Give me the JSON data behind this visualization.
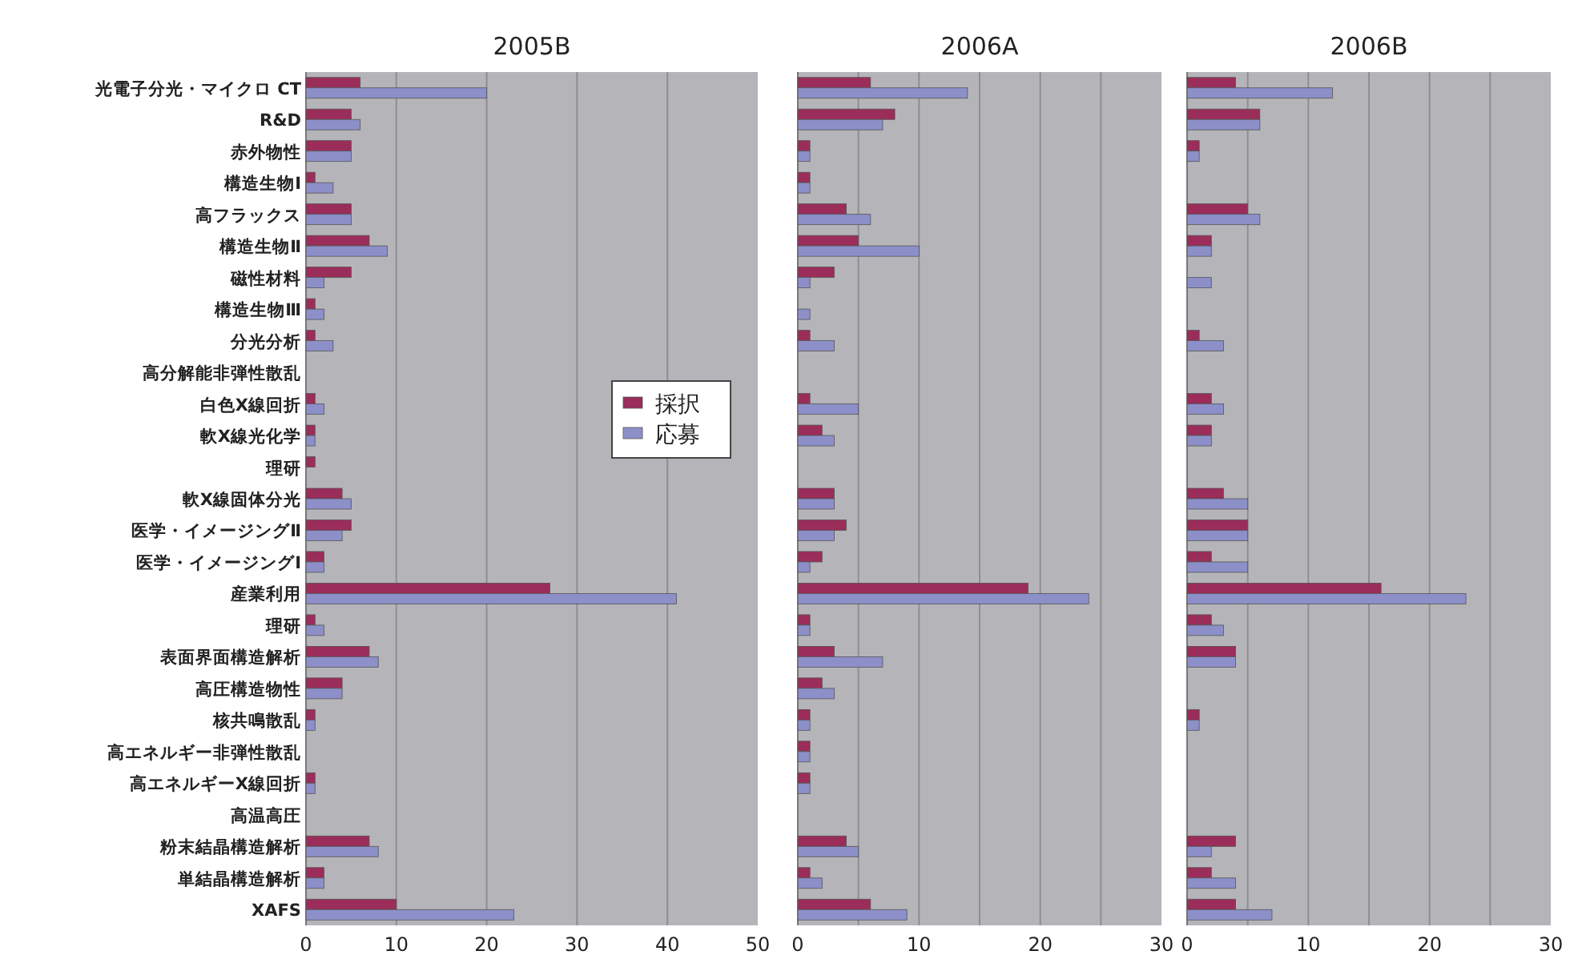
{
  "chart_data": [
    {
      "type": "bar",
      "orientation": "horizontal",
      "title": "2005B",
      "categories": [
        "光電子分光・マイクロ CT",
        "R&D",
        "赤外物性",
        "構造生物Ⅰ",
        "高フラックス",
        "構造生物Ⅱ",
        "磁性材料",
        "構造生物Ⅲ",
        "分光分析",
        "高分解能非弾性散乱",
        "白色X線回折",
        "軟X線光化学",
        "理研",
        "軟X線固体分光",
        "医学・イメージングⅡ",
        "医学・イメージングⅠ",
        "産業利用",
        "理研",
        "表面界面構造解析",
        "高圧構造物性",
        "核共鳴散乱",
        "高エネルギー非弾性散乱",
        "高エネルギーX線回折",
        "高温高圧",
        "粉末結晶構造解析",
        "単結晶構造解析",
        "XAFS"
      ],
      "series": [
        {
          "name": "採択",
          "color": "#9b2d5a",
          "values": [
            6,
            5,
            5,
            1,
            5,
            7,
            5,
            1,
            1,
            0,
            1,
            1,
            1,
            4,
            5,
            2,
            27,
            1,
            7,
            4,
            1,
            0,
            1,
            0,
            7,
            2,
            10
          ]
        },
        {
          "name": "応募",
          "color": "#8c8fc8",
          "values": [
            20,
            6,
            5,
            3,
            5,
            9,
            2,
            2,
            3,
            0,
            2,
            1,
            0,
            5,
            4,
            2,
            41,
            2,
            8,
            4,
            1,
            0,
            1,
            0,
            8,
            2,
            23
          ]
        }
      ],
      "xlim": [
        0,
        50
      ],
      "xticks": [
        0,
        10,
        20,
        30,
        40,
        50
      ],
      "grid": "x",
      "legend": "right"
    },
    {
      "type": "bar",
      "orientation": "horizontal",
      "title": "2006A",
      "tick_labels": "x",
      "categories": [
        null,
        null,
        null,
        null,
        null,
        null,
        null,
        null,
        null,
        null,
        null,
        null,
        null,
        null,
        null,
        null,
        null,
        null,
        null,
        null,
        null,
        null,
        null,
        null,
        null,
        null,
        null
      ],
      "series": [
        {
          "color": "#9b2d5a",
          "values": [
            6,
            8,
            1,
            1,
            4,
            5,
            3,
            0,
            1,
            0,
            1,
            2,
            0,
            3,
            4,
            2,
            19,
            1,
            3,
            2,
            1,
            1,
            1,
            0,
            4,
            1,
            6
          ]
        },
        {
          "color": "#8c8fc8",
          "values": [
            14,
            7,
            1,
            1,
            6,
            10,
            1,
            1,
            3,
            0,
            5,
            3,
            0,
            3,
            3,
            1,
            24,
            1,
            7,
            3,
            1,
            1,
            1,
            0,
            5,
            2,
            9
          ]
        }
      ],
      "xlim": [
        0,
        30
      ],
      "xticks": [
        0,
        {
          "value": 5,
          "label": null
        },
        10,
        {
          "value": 15,
          "label": null
        },
        20,
        {
          "value": 25,
          "label": null
        },
        30
      ],
      "grid": "x"
    },
    {
      "type": "bar",
      "orientation": "horizontal",
      "title": "2006B",
      "tick_labels": "x",
      "categories": [
        null,
        null,
        null,
        null,
        null,
        null,
        null,
        null,
        null,
        null,
        null,
        null,
        null,
        null,
        null,
        null,
        null,
        null,
        null,
        null,
        null,
        null,
        null,
        null,
        null,
        null,
        null
      ],
      "series": [
        {
          "color": "#9b2d5a",
          "values": [
            4,
            6,
            1,
            0,
            5,
            2,
            0,
            0,
            1,
            0,
            2,
            2,
            0,
            3,
            5,
            2,
            16,
            2,
            4,
            0,
            1,
            0,
            0,
            0,
            4,
            2,
            4
          ]
        },
        {
          "color": "#8c8fc8",
          "values": [
            12,
            6,
            1,
            0,
            6,
            2,
            2,
            0,
            3,
            0,
            3,
            2,
            0,
            5,
            5,
            5,
            23,
            3,
            4,
            0,
            1,
            0,
            0,
            0,
            2,
            4,
            7
          ]
        }
      ],
      "xlim": [
        0,
        30
      ],
      "xticks": [
        0,
        {
          "value": 5,
          "label": null
        },
        10,
        {
          "value": 15,
          "label": null
        },
        20,
        {
          "value": 25,
          "label": null
        },
        30
      ],
      "grid": "x"
    }
  ]
}
